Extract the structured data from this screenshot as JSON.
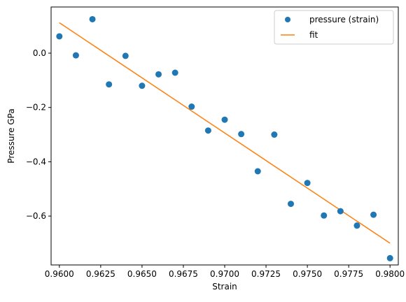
{
  "chart_data": {
    "type": "scatter",
    "title": "",
    "xlabel": "Strain",
    "ylabel": "Pressure GPa",
    "xlim": [
      0.9595,
      0.9805
    ],
    "ylim": [
      -0.78,
      0.17
    ],
    "xticks": [
      0.96,
      0.9625,
      0.965,
      0.9675,
      0.97,
      0.9725,
      0.975,
      0.9775,
      0.98
    ],
    "xtick_labels": [
      "0.9600",
      "0.9625",
      "0.9650",
      "0.9675",
      "0.9700",
      "0.9725",
      "0.9750",
      "0.9775",
      "0.9800"
    ],
    "yticks": [
      0.0,
      -0.2,
      -0.4,
      -0.6
    ],
    "ytick_labels": [
      "0.0",
      "−0.2",
      "−0.4",
      "−0.6"
    ],
    "grid": false,
    "legend_position": "top-right",
    "series": [
      {
        "name": "pressure (strain)",
        "kind": "scatter",
        "color": "#1f77b4",
        "x": [
          0.96,
          0.961,
          0.962,
          0.963,
          0.964,
          0.965,
          0.966,
          0.967,
          0.968,
          0.969,
          0.97,
          0.971,
          0.972,
          0.973,
          0.974,
          0.975,
          0.976,
          0.977,
          0.978,
          0.979,
          0.98
        ],
        "y": [
          0.062,
          -0.008,
          0.125,
          -0.115,
          -0.01,
          -0.12,
          -0.078,
          -0.072,
          -0.197,
          -0.285,
          -0.245,
          -0.298,
          -0.435,
          -0.3,
          -0.555,
          -0.478,
          -0.598,
          -0.582,
          -0.635,
          -0.595,
          -0.755
        ]
      },
      {
        "name": "fit",
        "kind": "line",
        "color": "#ff7f0e",
        "x": [
          0.96,
          0.98
        ],
        "y": [
          0.112,
          -0.7
        ]
      }
    ]
  }
}
